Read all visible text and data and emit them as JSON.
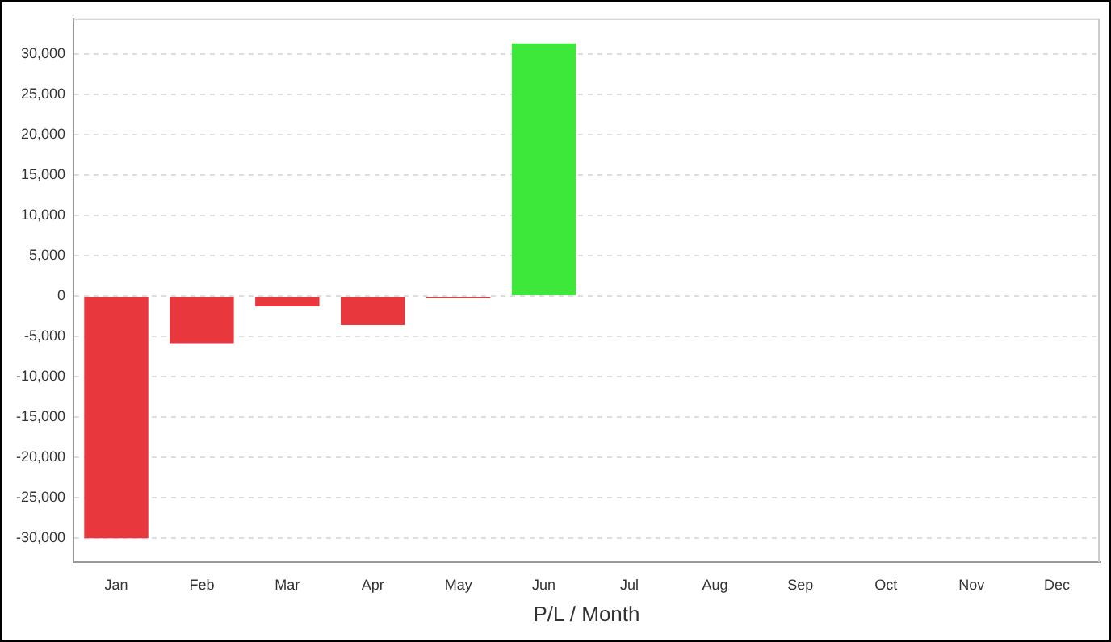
{
  "chart_data": {
    "type": "bar",
    "xlabel": "P/L / Month",
    "categories": [
      "Jan",
      "Feb",
      "Mar",
      "Apr",
      "May",
      "Jun",
      "Jul",
      "Aug",
      "Sep",
      "Oct",
      "Nov",
      "Dec"
    ],
    "values": [
      -30000,
      -5850,
      -1300,
      -3600,
      -250,
      31300,
      null,
      null,
      null,
      null,
      null,
      null
    ],
    "colors": [
      "#e8383d",
      "#e8383d",
      "#e8383d",
      "#e8383d",
      "#e8383d",
      "#3ee83a",
      null,
      null,
      null,
      null,
      null,
      null
    ],
    "ylim": [
      -33000,
      34400
    ],
    "yticks": [
      {
        "value": -30000,
        "label": "-30,000"
      },
      {
        "value": -25000,
        "label": "-25,000"
      },
      {
        "value": -20000,
        "label": "-20,000"
      },
      {
        "value": -15000,
        "label": "-15,000"
      },
      {
        "value": -10000,
        "label": "-10,000"
      },
      {
        "value": -5000,
        "label": "-5,000"
      },
      0,
      {
        "value": 5000,
        "label": "5,000"
      },
      {
        "value": 10000,
        "label": "10,000"
      },
      {
        "value": 15000,
        "label": "15,000"
      },
      {
        "value": 20000,
        "label": "20,000"
      },
      {
        "value": 25000,
        "label": "25,000"
      },
      {
        "value": 30000,
        "label": "30,000"
      }
    ],
    "grid": "y",
    "legend": false
  }
}
